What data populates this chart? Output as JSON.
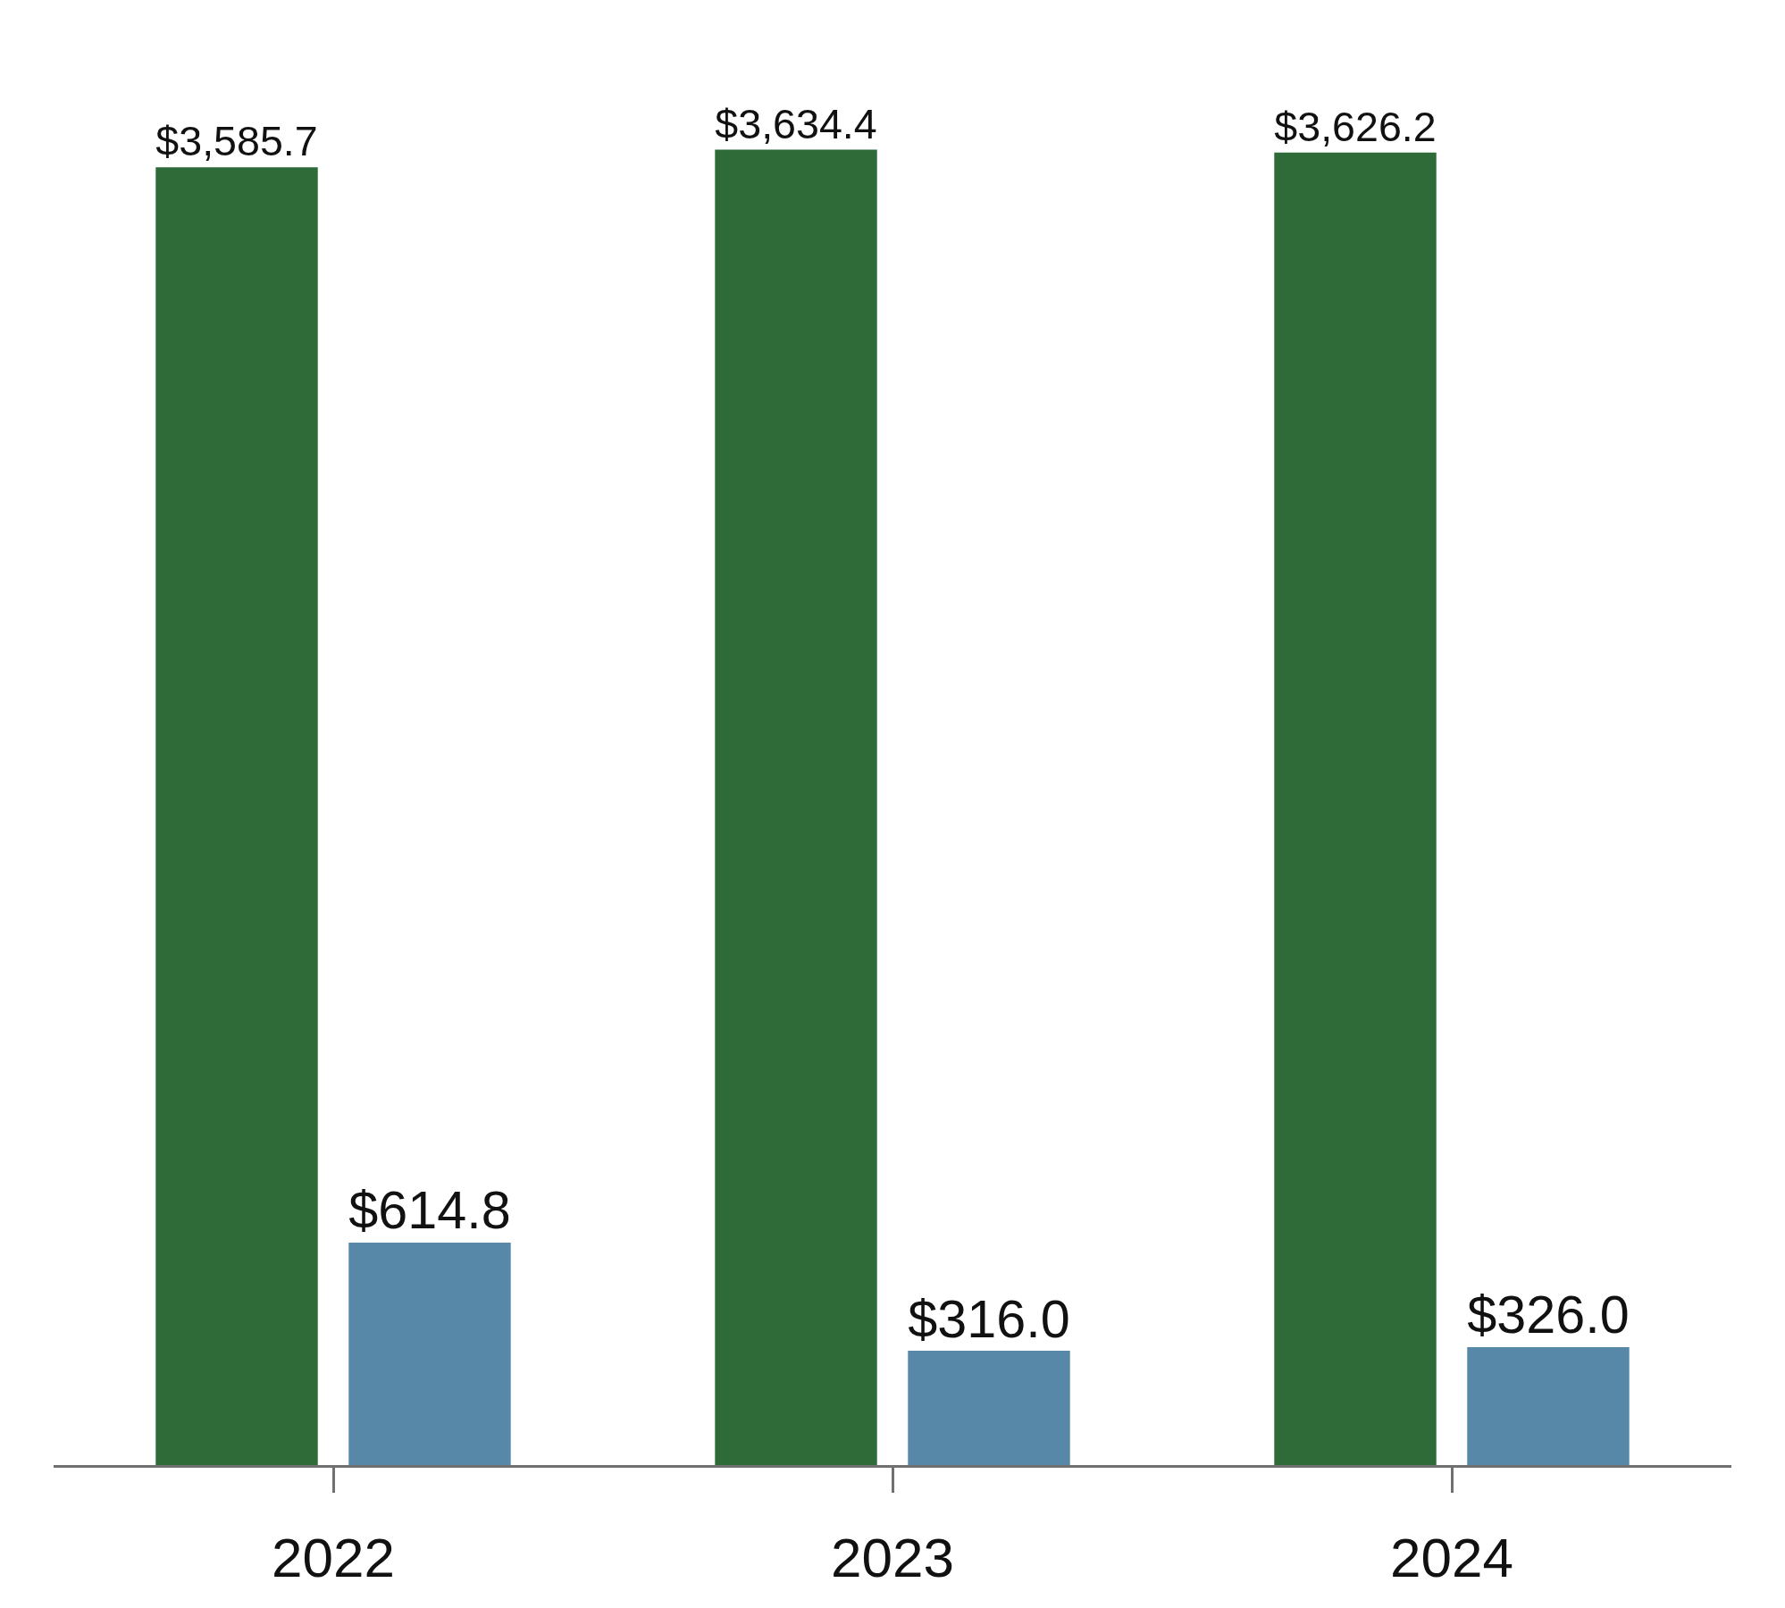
{
  "chart_data": {
    "type": "bar",
    "categories": [
      "2022",
      "2023",
      "2024"
    ],
    "series": [
      {
        "color": "#2e6b38",
        "values": [
          3585.7,
          3634.4,
          3626.2
        ],
        "value_labels": [
          "$3,585.7",
          "$3,634.4",
          "$3,626.2"
        ]
      },
      {
        "color": "#5788a8",
        "values": [
          614.8,
          316.0,
          326.0
        ],
        "value_labels": [
          "$614.8",
          "$316.0",
          "$326.0"
        ]
      }
    ],
    "grid": false,
    "legend": false
  }
}
